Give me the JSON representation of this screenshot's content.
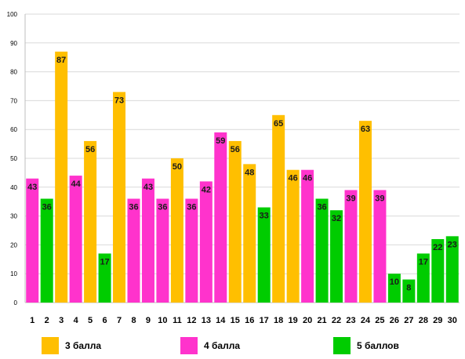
{
  "chart_data": {
    "type": "bar",
    "categories": [
      "1",
      "2",
      "3",
      "4",
      "5",
      "6",
      "7",
      "8",
      "9",
      "10",
      "11",
      "12",
      "13",
      "14",
      "15",
      "16",
      "17",
      "18",
      "19",
      "20",
      "21",
      "22",
      "23",
      "24",
      "25",
      "26",
      "27",
      "28",
      "29",
      "30"
    ],
    "values": [
      43,
      36,
      87,
      44,
      56,
      17,
      73,
      36,
      43,
      36,
      50,
      36,
      42,
      59,
      56,
      48,
      33,
      65,
      46,
      46,
      36,
      32,
      39,
      63,
      39,
      10,
      8,
      17,
      22,
      23
    ],
    "groups": [
      "4",
      "5",
      "3",
      "4",
      "3",
      "5",
      "3",
      "4",
      "4",
      "4",
      "3",
      "4",
      "4",
      "4",
      "3",
      "3",
      "5",
      "3",
      "3",
      "4",
      "5",
      "5",
      "4",
      "3",
      "4",
      "5",
      "5",
      "5",
      "5",
      "5"
    ],
    "yticks": [
      "0",
      "10",
      "20",
      "30",
      "40",
      "50",
      "60",
      "70",
      "80",
      "90",
      "100"
    ],
    "ylim": [
      0,
      100
    ],
    "grid": true,
    "legend_position": "bottom",
    "legend": [
      {
        "key": "3",
        "label": "3 балла",
        "color": "#ffbf00"
      },
      {
        "key": "4",
        "label": "4 балла",
        "color": "#ff33cc"
      },
      {
        "key": "5",
        "label": "5 баллов",
        "color": "#00cc00"
      }
    ],
    "gridline_color": "#d9d9d9"
  }
}
